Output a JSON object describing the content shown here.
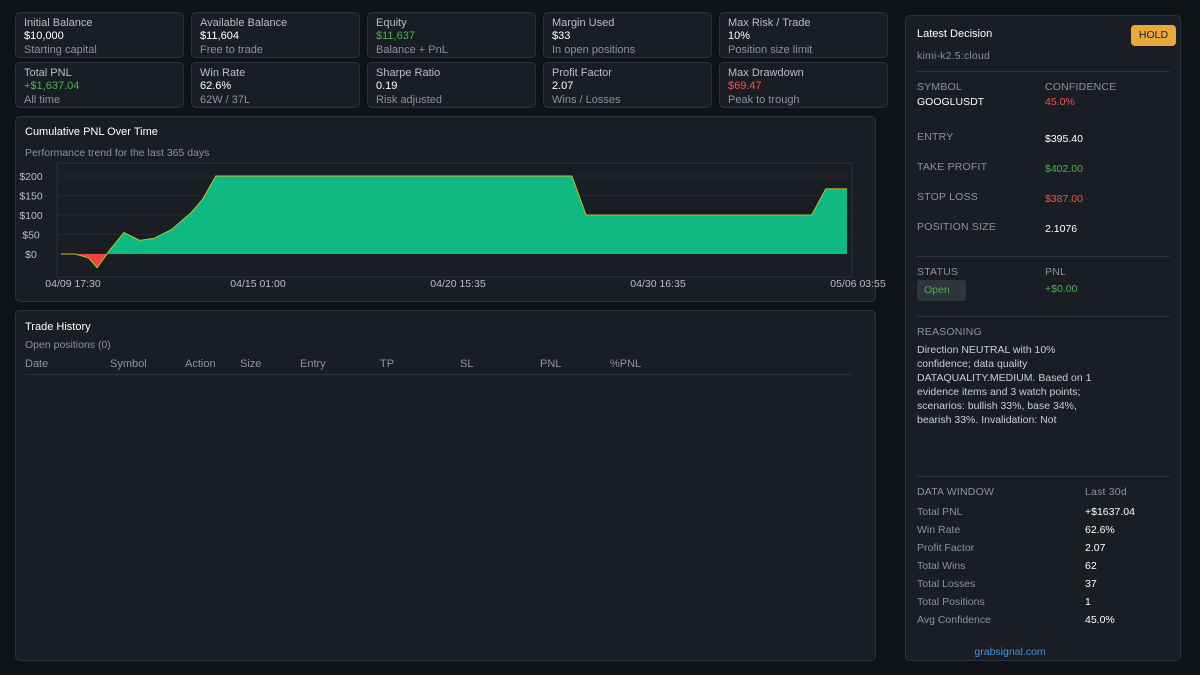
{
  "stats_row1": [
    {
      "label": "Initial Balance",
      "value": "$10,000",
      "sub": "Starting capital",
      "tone": "neutral"
    },
    {
      "label": "Available Balance",
      "value": "$11,604",
      "sub": "Free to trade",
      "tone": "neutral"
    },
    {
      "label": "Equity",
      "value": "$11,637",
      "sub": "Balance + PnL",
      "tone": "pos"
    },
    {
      "label": "Margin Used",
      "value": "$33",
      "sub": "In open positions",
      "tone": "neutral"
    },
    {
      "label": "Max Risk / Trade",
      "value": "10%",
      "sub": "Position size limit",
      "tone": "neutral"
    }
  ],
  "stats_row2": [
    {
      "label": "Total PNL",
      "value": "+$1,637.04",
      "sub": "All time",
      "tone": "pos"
    },
    {
      "label": "Win Rate",
      "value": "62.6%",
      "sub": "62W / 37L",
      "tone": "neutral"
    },
    {
      "label": "Sharpe Ratio",
      "value": "0.19",
      "sub": "Risk adjusted",
      "tone": "neutral"
    },
    {
      "label": "Profit Factor",
      "value": "2.07",
      "sub": "Wins / Losses",
      "tone": "neutral"
    },
    {
      "label": "Max Drawdown",
      "value": "$69.47",
      "sub": "Peak to trough",
      "tone": "neg"
    }
  ],
  "chart_panel": {
    "title": "Cumulative PNL Over Time",
    "subtitle": "Performance trend for the last 365 days"
  },
  "chart_data": {
    "type": "area",
    "title": "Cumulative PNL Over Time",
    "ylim": [
      -30,
      230
    ],
    "y_ticks": [
      0,
      50,
      100,
      150,
      200
    ],
    "y_tick_labels": [
      "$0",
      "$50",
      "$100",
      "$150",
      "$200"
    ],
    "x_tick_labels": [
      "04/09 17:30",
      "04/15 01:00",
      "04/20 15:35",
      "04/30 16:35",
      "05/06 03:55"
    ],
    "grid": true,
    "positive_color": "#10b981",
    "negative_color": "#ef4444",
    "line_color": "#b5c22a",
    "points": [
      [
        0.0,
        0
      ],
      [
        0.018,
        0
      ],
      [
        0.035,
        -10
      ],
      [
        0.046,
        -35
      ],
      [
        0.062,
        10
      ],
      [
        0.08,
        55
      ],
      [
        0.1,
        35
      ],
      [
        0.118,
        40
      ],
      [
        0.14,
        62
      ],
      [
        0.165,
        105
      ],
      [
        0.18,
        140
      ],
      [
        0.197,
        200
      ],
      [
        0.38,
        200
      ],
      [
        0.58,
        200
      ],
      [
        0.65,
        200
      ],
      [
        0.668,
        100
      ],
      [
        0.71,
        100
      ],
      [
        0.9,
        100
      ],
      [
        0.955,
        100
      ],
      [
        0.973,
        167
      ],
      [
        1.0,
        167
      ]
    ]
  },
  "trade_history": {
    "title": "Trade History",
    "subtitle": "Open positions (0)",
    "columns": [
      "Date",
      "Symbol",
      "Action",
      "Size",
      "Entry",
      "TP",
      "SL",
      "PNL",
      "%PNL"
    ],
    "rows": []
  },
  "decision": {
    "title": "Latest Decision",
    "badge": "HOLD",
    "badge_color": "#e8a93a",
    "model": "kimi-k2.5:cloud",
    "symbol_label": "SYMBOL",
    "symbol": "GOOGLUSDT",
    "confidence_label": "CONFIDENCE",
    "confidence": "45.0%",
    "entry_label": "ENTRY",
    "entry": "$395.40",
    "tp_label": "TAKE PROFIT",
    "tp": "$402.00",
    "sl_label": "STOP LOSS",
    "sl": "$387.00",
    "size_label": "POSITION SIZE",
    "size": "2.1076",
    "status_label": "STATUS",
    "status": "Open",
    "pnl_label": "PNL",
    "pnl": "+$0.00",
    "reasoning_label": "REASONING",
    "reasoning_lines": [
      "Direction NEUTRAL with 10%",
      "confidence; data quality",
      "DATAQUALITY.MEDIUM. Based on 1",
      "evidence items and 3 watch points;",
      "scenarios: bullish 33%, base 34%,",
      "bearish 33%. Invalidation: Not"
    ]
  },
  "data_window": {
    "label": "DATA WINDOW",
    "range": "Last 30d",
    "rows": [
      {
        "k": "Total PNL",
        "v": "+$1637.04"
      },
      {
        "k": "Win Rate",
        "v": "62.6%"
      },
      {
        "k": "Profit Factor",
        "v": "2.07"
      },
      {
        "k": "Total Wins",
        "v": "62"
      },
      {
        "k": "Total Losses",
        "v": "37"
      },
      {
        "k": "Total Positions",
        "v": "1"
      },
      {
        "k": "Avg Confidence",
        "v": "45.0%"
      }
    ]
  },
  "footer_link": "grabsignal.com"
}
